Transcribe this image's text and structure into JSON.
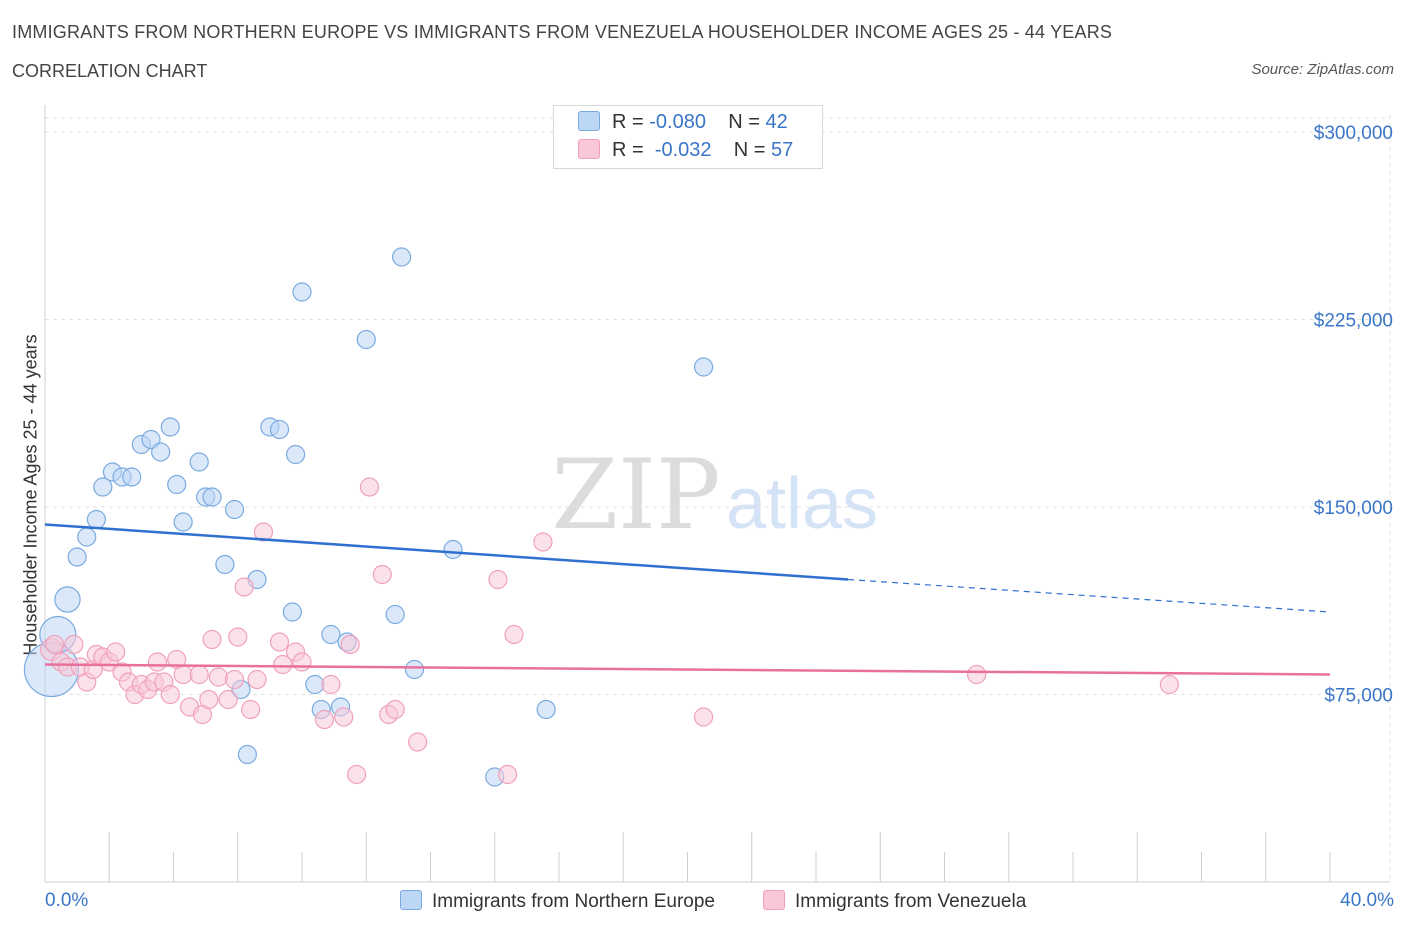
{
  "title": "IMMIGRANTS FROM NORTHERN EUROPE VS IMMIGRANTS FROM VENEZUELA HOUSEHOLDER INCOME AGES 25 - 44 YEARS",
  "subtitle": "CORRELATION CHART",
  "source": "Source: ZipAtlas.com",
  "watermark": {
    "zip": "ZIP",
    "atlas": "atlas"
  },
  "legend": {
    "r_label": "R =",
    "n_label": "N =",
    "series1": {
      "r": "-0.080",
      "n": "42"
    },
    "series2": {
      "r": "-0.032",
      "n": "57"
    }
  },
  "x_axis": {
    "min_label": "0.0%",
    "max_label": "40.0%"
  },
  "chart_data": {
    "type": "scatter",
    "ylabel": "Householder Income Ages 25 - 44 years",
    "xlim": [
      0,
      40
    ],
    "ylim": [
      0,
      310000
    ],
    "y_ticks": [
      75000,
      150000,
      225000,
      300000
    ],
    "y_tick_labels": [
      "$75,000",
      "$150,000",
      "$225,000",
      "$300,000"
    ],
    "grid": true,
    "legend_position": "top-center",
    "series": [
      {
        "name": "Immigrants from Northern Europe",
        "color": "#7aaae0",
        "fill": "#bcd6f5",
        "trend": {
          "x0": 0,
          "y0": 143000,
          "x1": 25,
          "y1": 121000,
          "dash_x1": 40,
          "dash_y1": 108000,
          "color": "#2f6fcf"
        },
        "points": [
          [
            0.2,
            85000,
            3
          ],
          [
            0.4,
            99000,
            2
          ],
          [
            0.7,
            113000,
            1.4
          ],
          [
            1.0,
            130000,
            1
          ],
          [
            1.3,
            138000,
            1
          ],
          [
            1.6,
            145000,
            1
          ],
          [
            1.8,
            158000,
            1
          ],
          [
            2.1,
            164000,
            1
          ],
          [
            2.4,
            162000,
            1
          ],
          [
            2.7,
            162000,
            1
          ],
          [
            3.0,
            175000,
            1
          ],
          [
            3.3,
            177000,
            1
          ],
          [
            3.6,
            172000,
            1
          ],
          [
            3.9,
            182000,
            1
          ],
          [
            4.1,
            159000,
            1
          ],
          [
            4.3,
            144000,
            1
          ],
          [
            4.8,
            168000,
            1
          ],
          [
            5.0,
            154000,
            1
          ],
          [
            5.2,
            154000,
            1
          ],
          [
            5.6,
            127000,
            1
          ],
          [
            5.9,
            149000,
            1
          ],
          [
            6.1,
            77000,
            1
          ],
          [
            6.3,
            51000,
            1
          ],
          [
            6.6,
            121000,
            1
          ],
          [
            7.0,
            182000,
            1
          ],
          [
            7.3,
            181000,
            1
          ],
          [
            7.7,
            108000,
            1
          ],
          [
            7.8,
            171000,
            1
          ],
          [
            8.0,
            236000,
            1
          ],
          [
            8.4,
            79000,
            1
          ],
          [
            8.6,
            69000,
            1
          ],
          [
            8.9,
            99000,
            1
          ],
          [
            9.2,
            70000,
            1
          ],
          [
            9.4,
            96000,
            1
          ],
          [
            10.0,
            217000,
            1
          ],
          [
            11.1,
            250000,
            1
          ],
          [
            10.9,
            107000,
            1
          ],
          [
            11.5,
            85000,
            1
          ],
          [
            12.7,
            133000,
            1
          ],
          [
            14.0,
            42000,
            1
          ],
          [
            15.6,
            69000,
            1
          ],
          [
            20.5,
            206000,
            1
          ]
        ]
      },
      {
        "name": "Immigrants from Venezuela",
        "color": "#f0a0bb",
        "fill": "#f8c8d8",
        "trend": {
          "x0": 0,
          "y0": 87000,
          "x1": 40,
          "y1": 83000,
          "color": "#e8709a"
        },
        "points": [
          [
            0.2,
            93000,
            1.2
          ],
          [
            0.3,
            95000,
            1
          ],
          [
            0.5,
            88000,
            1
          ],
          [
            0.7,
            86000,
            1
          ],
          [
            0.9,
            95000,
            1
          ],
          [
            1.1,
            86000,
            1
          ],
          [
            1.3,
            80000,
            1
          ],
          [
            1.5,
            85000,
            1
          ],
          [
            1.6,
            91000,
            1
          ],
          [
            1.8,
            90000,
            1
          ],
          [
            2.0,
            88000,
            1
          ],
          [
            2.2,
            92000,
            1
          ],
          [
            2.4,
            84000,
            1
          ],
          [
            2.6,
            80000,
            1
          ],
          [
            2.8,
            75000,
            1
          ],
          [
            3.0,
            79000,
            1
          ],
          [
            3.2,
            77000,
            1
          ],
          [
            3.4,
            80000,
            1
          ],
          [
            3.5,
            88000,
            1
          ],
          [
            3.7,
            80000,
            1
          ],
          [
            3.9,
            75000,
            1
          ],
          [
            4.1,
            89000,
            1
          ],
          [
            4.3,
            83000,
            1
          ],
          [
            4.5,
            70000,
            1
          ],
          [
            4.8,
            83000,
            1
          ],
          [
            4.9,
            67000,
            1
          ],
          [
            5.1,
            73000,
            1
          ],
          [
            5.2,
            97000,
            1
          ],
          [
            5.4,
            82000,
            1
          ],
          [
            5.7,
            73000,
            1
          ],
          [
            5.9,
            81000,
            1
          ],
          [
            6.0,
            98000,
            1
          ],
          [
            6.2,
            118000,
            1
          ],
          [
            6.4,
            69000,
            1
          ],
          [
            6.6,
            81000,
            1
          ],
          [
            6.8,
            140000,
            1
          ],
          [
            7.3,
            96000,
            1
          ],
          [
            7.4,
            87000,
            1
          ],
          [
            7.8,
            92000,
            1
          ],
          [
            8.0,
            88000,
            1
          ],
          [
            8.7,
            65000,
            1
          ],
          [
            8.9,
            79000,
            1
          ],
          [
            9.3,
            66000,
            1
          ],
          [
            9.5,
            95000,
            1
          ],
          [
            9.7,
            43000,
            1
          ],
          [
            10.1,
            158000,
            1
          ],
          [
            10.5,
            123000,
            1
          ],
          [
            10.7,
            67000,
            1
          ],
          [
            10.9,
            69000,
            1
          ],
          [
            11.6,
            56000,
            1
          ],
          [
            14.1,
            121000,
            1
          ],
          [
            14.4,
            43000,
            1
          ],
          [
            14.6,
            99000,
            1
          ],
          [
            15.5,
            136000,
            1
          ],
          [
            20.5,
            66000,
            1
          ],
          [
            29.0,
            83000,
            1
          ],
          [
            35.0,
            79000,
            1
          ]
        ]
      }
    ]
  }
}
